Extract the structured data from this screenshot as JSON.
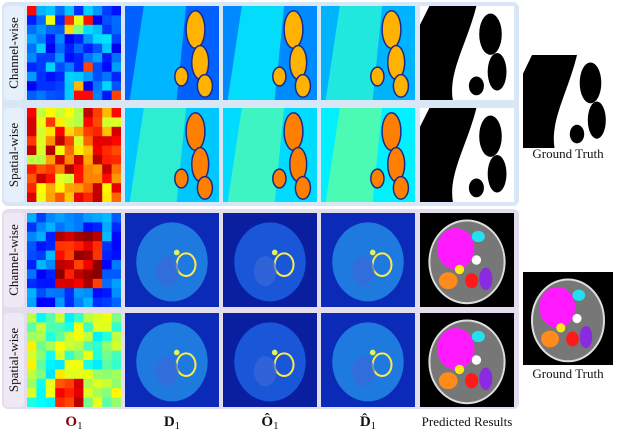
{
  "groups": [
    {
      "rows": [
        {
          "label": "Channel-wise"
        },
        {
          "label": "Spatial-wise"
        }
      ],
      "ground_truth": "Ground Truth"
    },
    {
      "rows": [
        {
          "label": "Channel-wise"
        },
        {
          "label": "Spatial-wise"
        }
      ],
      "ground_truth": "Ground Truth"
    }
  ],
  "columns": [
    {
      "base": "O",
      "sub": "1"
    },
    {
      "base": "D",
      "sub": "1"
    },
    {
      "base": "Ô",
      "sub": "1"
    },
    {
      "base": "D̂",
      "sub": "1"
    },
    {
      "text": "Predicted Results"
    }
  ]
}
